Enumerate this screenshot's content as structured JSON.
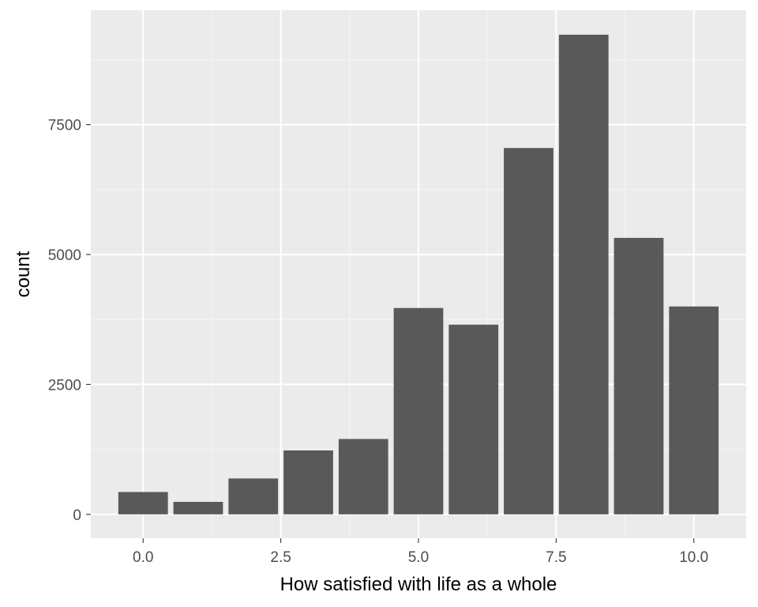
{
  "chart_data": {
    "type": "bar",
    "title": "",
    "xlabel": "How satisfied with life as a whole",
    "ylabel": "count",
    "x": [
      0,
      1,
      2,
      3,
      4,
      5,
      6,
      7,
      8,
      9,
      10
    ],
    "values": [
      430,
      240,
      690,
      1230,
      1450,
      3970,
      3650,
      7050,
      9230,
      5320,
      4000
    ],
    "xlim": [
      -0.95,
      10.95
    ],
    "ylim": [
      -460,
      9700
    ],
    "x_ticks": [
      0,
      2.5,
      5,
      7.5,
      10
    ],
    "x_tick_labels": [
      "0.0",
      "2.5",
      "5.0",
      "7.5",
      "10.0"
    ],
    "y_ticks": [
      0,
      2500,
      5000,
      7500
    ],
    "y_tick_labels": [
      "0",
      "2500",
      "5000",
      "7500"
    ],
    "bar_width": 0.9,
    "grid": true,
    "legend": "none",
    "colors": {
      "panel_background": "#ebebeb",
      "grid_major": "#ffffff",
      "grid_minor": "#f5f5f5",
      "bar_fill": "#595959",
      "tick_text": "#4d4d4d",
      "tick_mark": "#333333",
      "axis_title": "#000000"
    }
  }
}
